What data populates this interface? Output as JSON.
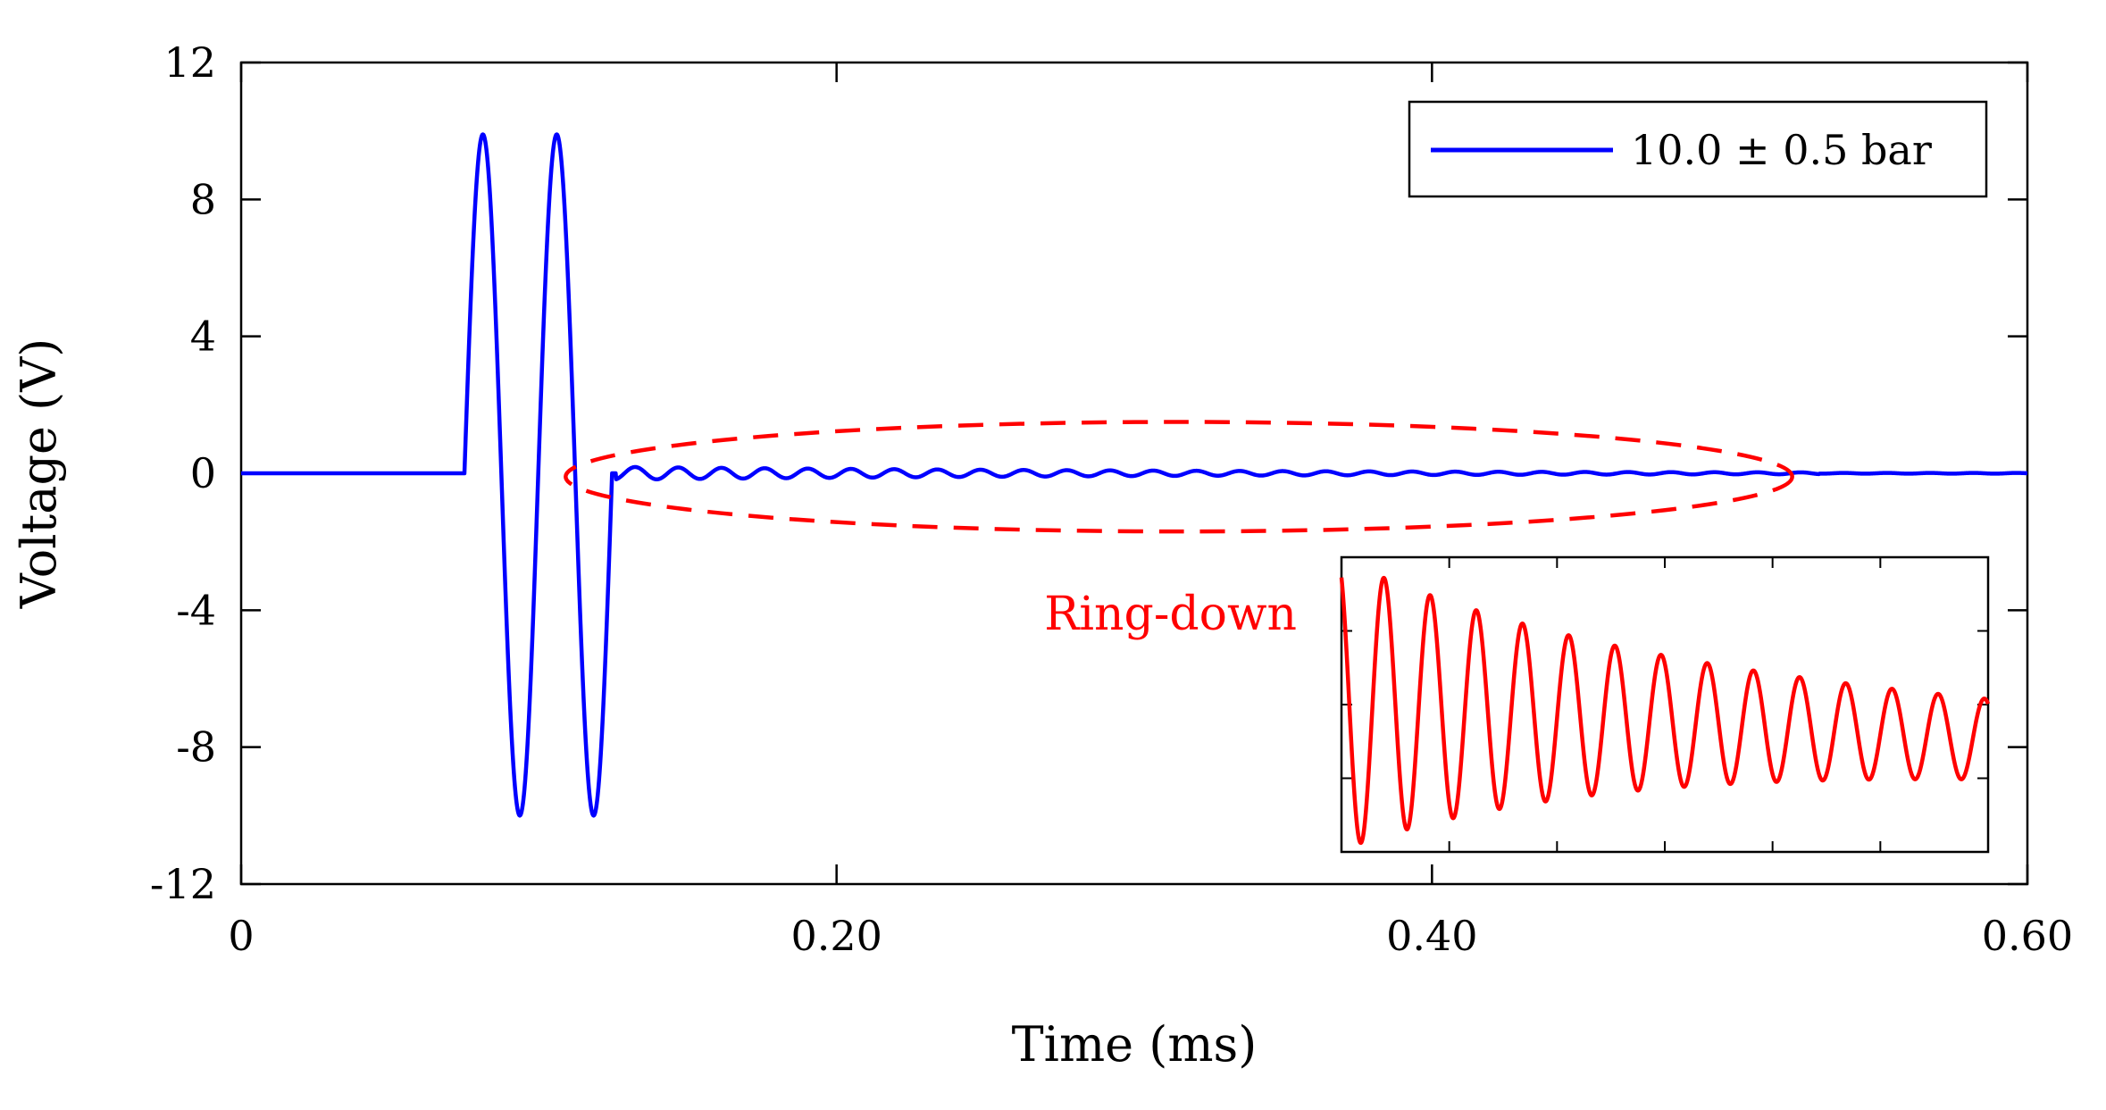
{
  "chart_data": {
    "type": "line",
    "title": "",
    "xlabel": "Time (ms)",
    "ylabel": "Voltage (V)",
    "xlim": [
      0,
      0.6
    ],
    "ylim": [
      -12,
      12
    ],
    "xticks": [
      0,
      0.2,
      0.4,
      0.6
    ],
    "xtick_labels": [
      "0",
      "0.20",
      "0.40",
      "0.60"
    ],
    "yticks": [
      12,
      8,
      4,
      0,
      -4,
      -8,
      -12
    ],
    "ytick_labels": [
      "12",
      "8",
      "4",
      "0",
      "-4",
      "-8",
      "-12"
    ],
    "grid": false,
    "legend_position": "top-right",
    "series": [
      {
        "name": "10.0 ± 0.5 bar",
        "color": "#0000ff",
        "signal": {
          "baseline_v": 0,
          "burst_start_ms": 0.075,
          "burst_end_ms": 0.1245,
          "burst_period_ms": 0.0248,
          "burst_peak_v": 9.9,
          "burst_trough_v": -10.0,
          "ringdown_start_ms": 0.126,
          "ringdown_period_ms": 0.0145,
          "ringdown_initial_amp_v": 0.35,
          "ringdown_end_amp_v": 0.05,
          "ringdown_fade_ms": 0.53
        },
        "x": [
          0,
          0.075,
          0.081,
          0.087,
          0.094,
          0.1,
          0.106,
          0.112,
          0.118,
          0.1245,
          0.126,
          0.15,
          0.3,
          0.52,
          0.6
        ],
        "y": [
          0,
          0,
          9.9,
          0,
          -10.0,
          0,
          9.8,
          0,
          -10.0,
          -0.3,
          0,
          0.1,
          0.07,
          0,
          0
        ]
      }
    ],
    "annotations": [
      {
        "type": "ellipse",
        "label": "Ring-down",
        "color": "#ff0000",
        "center_x_ms": 0.315,
        "center_y_v": -0.1,
        "half_width_ms": 0.206,
        "half_height_v": 1.6
      }
    ],
    "inset": {
      "type": "line",
      "color": "#ff0000",
      "description_label": "Ring-down",
      "cycles": 14,
      "x_ticks_count": 6,
      "y_ticks_count": 3
    }
  }
}
